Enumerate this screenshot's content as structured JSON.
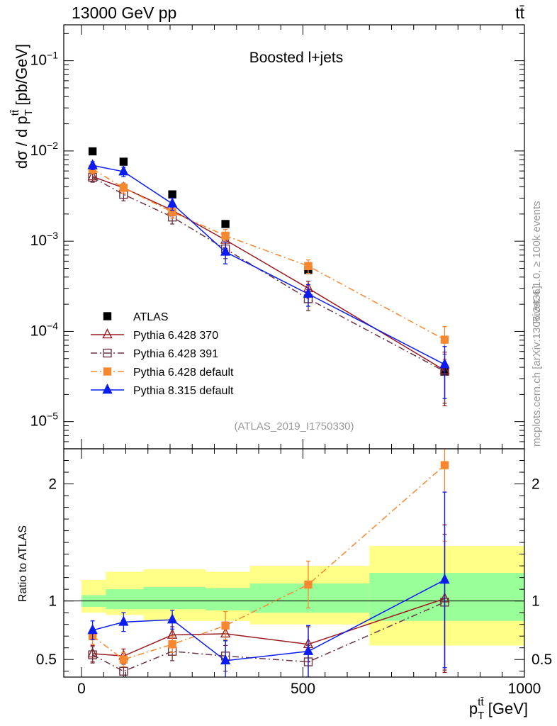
{
  "header": {
    "left_text": "13000 GeV pp",
    "right_text": "tt̄"
  },
  "side_labels": {
    "rivet": "Rivet 4.1.0, ≥ 100k events",
    "mcplots": "mcplots.cern.ch [arXiv:1306.3436]"
  },
  "colors": {
    "atlas": "#000000",
    "py6_370": "#9a1c22",
    "py6_391": "#6b3542",
    "py6_default": "#f7882f",
    "py8_default": "#0a1cf0",
    "band_outer": "#ffff88",
    "band_inner": "#99ff99",
    "watermark": "#999999"
  },
  "chart_data": [
    {
      "type": "scatter",
      "panel": "main",
      "title": "Boosted l+jets",
      "ylabel": "dσ / d p_T^{tt̄} [pb/GeV]",
      "yscale": "log",
      "ylim": [
        5e-06,
        0.25
      ],
      "xlim": [
        -40,
        1000
      ],
      "ytick_labels": [
        "10^{-5}",
        "10^{-4}",
        "10^{-3}",
        "10^{-2}",
        "10^{-1}"
      ],
      "analysis_label": "(ATLAS_2019_I1750330)",
      "legend_position": "bottom-left",
      "series": [
        {
          "name": "ATLAS",
          "key": "atlas",
          "marker": "filled-square",
          "line": "none",
          "x": [
            25,
            95,
            205,
            325,
            512,
            820
          ],
          "y": [
            0.0099,
            0.0076,
            0.0033,
            0.00155,
            0.00048,
            3.65e-05
          ]
        },
        {
          "name": "Pythia 6.428 370",
          "key": "py6_370",
          "marker": "open-triangle",
          "line": "solid",
          "x": [
            25,
            95,
            205,
            325,
            512,
            820
          ],
          "y": [
            0.0052,
            0.0039,
            0.0022,
            0.00103,
            0.0003,
            3.7e-05
          ],
          "err": [
            0.0006,
            0.0005,
            0.0003,
            0.0002,
            6e-05,
            2.2e-05
          ]
        },
        {
          "name": "Pythia 6.428 391",
          "key": "py6_391",
          "marker": "open-square",
          "line": "dashdot",
          "x": [
            25,
            95,
            205,
            325,
            512,
            820
          ],
          "y": [
            0.0051,
            0.0033,
            0.00185,
            0.00082,
            0.00023,
            3.6e-05
          ],
          "err": [
            0.0006,
            0.0005,
            0.0003,
            0.00018,
            6e-05,
            2e-05
          ]
        },
        {
          "name": "Pythia 6.428 default",
          "key": "py6_default",
          "marker": "filled-square",
          "line": "dashdot",
          "x": [
            25,
            95,
            205,
            325,
            512,
            820
          ],
          "y": [
            0.0063,
            0.0039,
            0.0021,
            0.00115,
            0.00053,
            8.1e-05
          ],
          "err": [
            0.0007,
            0.0005,
            0.0003,
            0.0002,
            9e-05,
            3.2e-05
          ]
        },
        {
          "name": "Pythia 8.315 default",
          "key": "py8_default",
          "marker": "filled-triangle",
          "line": "solid",
          "x": [
            25,
            95,
            205,
            325,
            512,
            820
          ],
          "y": [
            0.0069,
            0.0059,
            0.0026,
            0.00076,
            0.00026,
            4.3e-05
          ],
          "err": [
            0.0007,
            0.0007,
            0.0004,
            0.0002,
            7e-05,
            2.5e-05
          ]
        }
      ]
    },
    {
      "type": "scatter",
      "panel": "ratio",
      "ylabel": "Ratio to ATLAS",
      "xlabel": "p_T^{tt̄} [GeV]",
      "xlim": [
        -40,
        1000
      ],
      "ylim": [
        0.35,
        2.3
      ],
      "xticks": [
        0,
        500,
        1000
      ],
      "yticks": [
        0.5,
        1,
        2
      ],
      "ytick_labels": [
        "0.5",
        "1",
        "2"
      ],
      "bands": [
        {
          "x0": 0,
          "x1": 55,
          "inner": [
            0.95,
            1.05
          ],
          "outer": [
            0.9,
            1.18
          ]
        },
        {
          "x0": 55,
          "x1": 140,
          "inner": [
            0.93,
            1.1
          ],
          "outer": [
            0.88,
            1.25
          ]
        },
        {
          "x0": 140,
          "x1": 280,
          "inner": [
            0.93,
            1.12
          ],
          "outer": [
            0.83,
            1.27
          ]
        },
        {
          "x0": 280,
          "x1": 380,
          "inner": [
            0.92,
            1.11
          ],
          "outer": [
            0.83,
            1.25
          ]
        },
        {
          "x0": 380,
          "x1": 650,
          "inner": [
            0.9,
            1.15
          ],
          "outer": [
            0.8,
            1.3
          ]
        },
        {
          "x0": 650,
          "x1": 1000,
          "inner": [
            0.83,
            1.24
          ],
          "outer": [
            0.62,
            1.47
          ]
        }
      ],
      "series": [
        {
          "name": "Pythia 6.428 370",
          "key": "py6_370",
          "x": [
            25,
            95,
            205,
            325,
            512,
            820
          ],
          "y": [
            0.55,
            0.53,
            0.71,
            0.72,
            0.63,
            1.02
          ],
          "err": [
            0.07,
            0.06,
            0.07,
            0.1,
            0.15,
            0.63
          ]
        },
        {
          "name": "Pythia 6.428 391",
          "key": "py6_391",
          "x": [
            25,
            95,
            205,
            325,
            512,
            820
          ],
          "y": [
            0.54,
            0.4,
            0.57,
            0.53,
            0.48,
            0.99
          ],
          "err": [
            0.07,
            0.06,
            0.08,
            0.13,
            0.14,
            0.58
          ]
        },
        {
          "name": "Pythia 6.428 default",
          "key": "py6_default",
          "x": [
            25,
            95,
            205,
            325,
            512,
            820
          ],
          "y": [
            0.7,
            0.5,
            0.63,
            0.79,
            1.14,
            2.16
          ],
          "err": [
            0.07,
            0.06,
            0.07,
            0.12,
            0.2,
            0.65
          ]
        },
        {
          "name": "Pythia 8.315 default",
          "key": "py8_default",
          "x": [
            25,
            95,
            205,
            325,
            512,
            820
          ],
          "y": [
            0.75,
            0.82,
            0.84,
            0.49,
            0.57,
            1.18
          ],
          "err": [
            0.08,
            0.08,
            0.08,
            0.17,
            0.22,
            0.75
          ]
        }
      ]
    }
  ]
}
